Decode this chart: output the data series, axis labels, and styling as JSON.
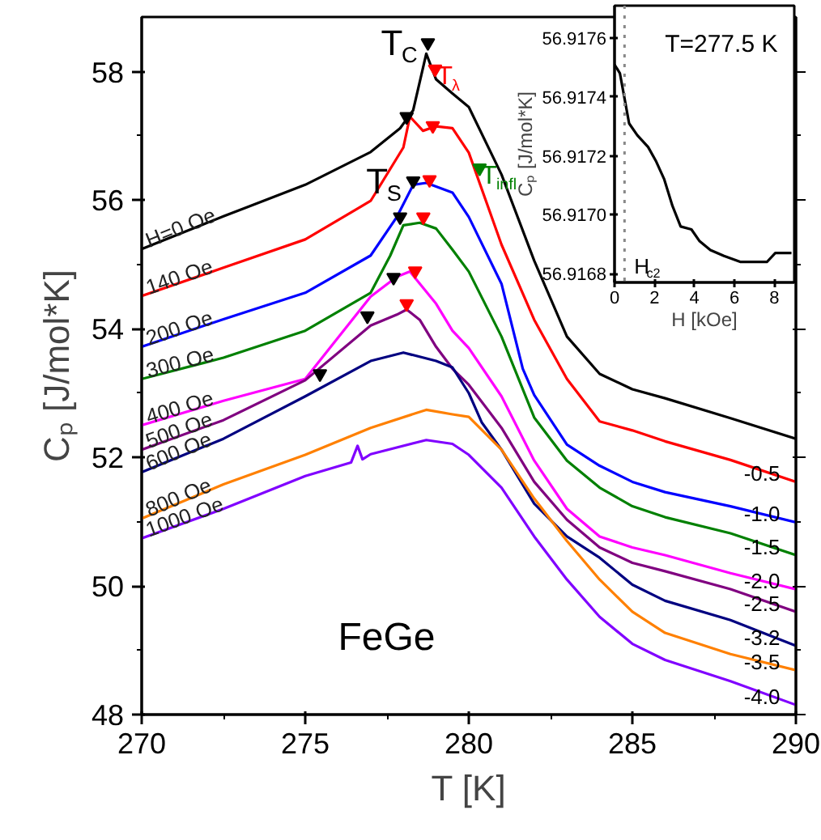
{
  "chart_data": [
    {
      "type": "line",
      "xlabel": "T [K]",
      "ylabel": "Cₚ [J/mol*K]",
      "xlim": [
        270,
        290
      ],
      "xticks": [
        270,
        {
          "value": 272.5,
          "label": null
        },
        275,
        {
          "value": 277.5,
          "label": null
        },
        280,
        {
          "value": 282.5,
          "label": null
        },
        285,
        {
          "value": 287.5,
          "label": null
        },
        290
      ],
      "ylim": [
        48,
        58.85
      ],
      "yticks": [
        48,
        {
          "value": 49,
          "label": null
        },
        50,
        {
          "value": 51,
          "label": null
        },
        52,
        {
          "value": 53,
          "label": null
        },
        54,
        {
          "value": 55,
          "label": null
        },
        56,
        {
          "value": 57,
          "label": null
        },
        58
      ],
      "grid": false,
      "annotations": [
        "FeGe",
        {
          "text": "T$_{C}$",
          "x": 278.75,
          "y": 58.45
        },
        {
          "text": "T$_{λ}$",
          "x": 278.97,
          "y": 58.04
        },
        {
          "text": "T$_{S}$",
          "x": 278.3,
          "y": 56.3
        },
        {
          "text": "T$_{infl}$",
          "x": 280.33,
          "y": 56.5
        },
        {
          "text": "-0.5",
          "x": 290,
          "y": 51.62
        },
        {
          "text": "-1.0",
          "x": 290,
          "y": 50.99
        },
        {
          "text": "-1.5",
          "x": 290,
          "y": 50.48
        },
        {
          "text": "-2.0",
          "x": 290,
          "y": 49.95
        },
        {
          "text": "-2.5",
          "x": 290,
          "y": 49.6
        },
        {
          "text": "-3.2",
          "x": 290,
          "y": 49.07
        },
        {
          "text": "-3.5",
          "x": 290,
          "y": 48.69
        },
        {
          "text": "-4.0",
          "x": 290,
          "y": 48.15
        }
      ],
      "series": [
        {
          "name": "H=0 Oe",
          "color": "#000000",
          "x": [
            270,
            272.5,
            275,
            277,
            277.9,
            278.3,
            278.7,
            279,
            279.5,
            280,
            281,
            282,
            283,
            284,
            285,
            286,
            288,
            290
          ],
          "values": [
            55.24,
            55.75,
            56.24,
            56.75,
            57.12,
            57.4,
            58.28,
            57.88,
            57.66,
            57.45,
            56.4,
            55.06,
            53.88,
            53.3,
            53.06,
            52.92,
            52.61,
            52.29
          ]
        },
        {
          "name": "140 Oe",
          "color": "#ff0000",
          "x": [
            270,
            272.5,
            275,
            277,
            278,
            278.2,
            278.6,
            279,
            279.5,
            280,
            281,
            282,
            283,
            284,
            285,
            286,
            288,
            290
          ],
          "values": [
            54.51,
            54.95,
            55.39,
            55.99,
            56.82,
            57.3,
            57.08,
            57.15,
            57.12,
            56.74,
            55.31,
            54.14,
            53.22,
            52.56,
            52.42,
            52.25,
            51.96,
            51.62
          ]
        },
        {
          "name": "200 Oe",
          "color": "#0000ff",
          "x": [
            270,
            272.5,
            275,
            277,
            277.8,
            278.3,
            278.7,
            279.5,
            280,
            281,
            281.65,
            282,
            283,
            284,
            285,
            286,
            288,
            290
          ],
          "values": [
            53.72,
            54.15,
            54.56,
            55.14,
            55.74,
            56.24,
            56.27,
            56.12,
            55.74,
            54.7,
            53.38,
            52.97,
            52.2,
            51.87,
            51.62,
            51.46,
            51.24,
            50.99
          ]
        },
        {
          "name": "300 Oe",
          "color": "#008000",
          "x": [
            270,
            272.5,
            275,
            277,
            277.6,
            278,
            278.5,
            279,
            279.5,
            280,
            281,
            282,
            283,
            284,
            285,
            286,
            288,
            290
          ],
          "values": [
            53.22,
            53.55,
            53.97,
            54.56,
            55.14,
            55.61,
            55.65,
            55.56,
            55.23,
            54.89,
            53.88,
            52.62,
            51.95,
            51.53,
            51.24,
            51.07,
            50.82,
            50.48
          ]
        },
        {
          "name": "400 Oe",
          "color": "#ff00ff",
          "x": [
            270,
            272.5,
            275,
            277,
            277.8,
            278.2,
            279,
            279.5,
            280,
            281,
            282,
            283,
            284,
            285,
            286,
            288,
            290
          ],
          "values": [
            52.5,
            52.88,
            53.22,
            54.5,
            54.81,
            54.89,
            54.39,
            53.97,
            53.7,
            52.95,
            51.95,
            51.2,
            50.77,
            50.6,
            50.48,
            50.2,
            49.95
          ]
        },
        {
          "name": "500 Oe",
          "color": "#800080",
          "x": [
            270,
            272.5,
            275,
            277,
            277.8,
            278.1,
            278.5,
            279,
            279.5,
            280,
            281,
            282,
            283,
            284,
            285,
            286,
            288,
            290
          ],
          "values": [
            52.12,
            52.58,
            53.2,
            54.05,
            54.22,
            54.3,
            54.14,
            53.72,
            53.38,
            53.13,
            52.46,
            51.62,
            51.03,
            50.6,
            50.36,
            50.23,
            49.95,
            49.6
          ]
        },
        {
          "name": "600 Oe",
          "color": "#000080",
          "x": [
            270,
            272.5,
            275,
            277,
            278,
            279,
            279.5,
            280,
            280.4,
            281,
            282,
            283,
            284,
            285,
            286,
            288,
            290
          ],
          "values": [
            51.77,
            52.29,
            52.95,
            53.5,
            53.63,
            53.5,
            53.4,
            53.0,
            52.54,
            52.12,
            51.28,
            50.77,
            50.44,
            50.02,
            49.77,
            49.47,
            49.07
          ]
        },
        {
          "name": "800 Oe",
          "color": "#ff8000",
          "x": [
            270,
            272.5,
            275,
            277,
            278.7,
            279.5,
            280,
            281,
            282,
            283,
            284,
            285,
            286,
            288,
            290
          ],
          "values": [
            51.05,
            51.58,
            52.04,
            52.46,
            52.74,
            52.67,
            52.63,
            52.12,
            51.36,
            50.7,
            50.1,
            49.6,
            49.27,
            48.94,
            48.69
          ]
        },
        {
          "name": "1000 Oe",
          "color": "#8000ff",
          "x": [
            270,
            272.5,
            275,
            276.4,
            276.6,
            276.75,
            277,
            278.7,
            279.5,
            280,
            281,
            282,
            283,
            284,
            285,
            286,
            288,
            290
          ],
          "values": [
            50.74,
            51.2,
            51.71,
            51.92,
            52.18,
            51.97,
            52.05,
            52.27,
            52.21,
            52.04,
            51.53,
            50.77,
            50.1,
            49.52,
            49.1,
            48.85,
            48.52,
            48.15
          ]
        },
        {
          "type": "scatter",
          "marker": "triangle",
          "color": "#000000",
          "x": [
            278.75,
            278.1,
            278.3,
            277.9,
            277.7,
            276.9,
            275.45
          ],
          "values": [
            58.45,
            57.3,
            56.3,
            55.74,
            54.8,
            54.2,
            53.3
          ]
        },
        {
          "type": "scatter",
          "marker": "triangle",
          "color": "#ff0000",
          "x": [
            278.97,
            278.9,
            278.8,
            278.61,
            278.36,
            278.1
          ],
          "values": [
            58.04,
            57.16,
            56.32,
            55.74,
            54.9,
            54.39
          ]
        },
        {
          "type": "scatter",
          "marker": "triangle",
          "color": "#008000",
          "x": [
            280.33
          ],
          "values": [
            56.5
          ]
        }
      ]
    },
    {
      "type": "line",
      "xlabel": "H [kOe]",
      "ylabel": "Cₚ [J/mol*K]",
      "xlim": [
        0,
        9
      ],
      "xticks": [
        0,
        2,
        4,
        6,
        8
      ],
      "ylim": [
        56.91677,
        56.91771
      ],
      "yticks": [
        {
          "value": 56.9168,
          "label": "56.9168"
        },
        {
          "value": 56.917,
          "label": "56.9170"
        },
        {
          "value": 56.9172,
          "label": "56.9172"
        },
        {
          "value": 56.9174,
          "label": "56.9174"
        },
        {
          "value": 56.9176,
          "label": "56.9176"
        }
      ],
      "grid": false,
      "annotations": [
        "T=277.5 K"
      ],
      "ref_lines": [
        {
          "axis": "x",
          "value": 0.5,
          "label": "H$_{c2}$",
          "color": "#888888",
          "line_style": "dotted"
        }
      ],
      "series": [
        {
          "color": "#000000",
          "x": [
            0,
            0.27,
            0.46,
            0.73,
            1.14,
            1.68,
            2.09,
            2.49,
            2.9,
            3.31,
            3.85,
            4.26,
            4.8,
            5.48,
            6.29,
            6.83,
            7.64,
            8.05,
            8.86
          ],
          "values": [
            56.91751,
            56.91748,
            56.91741,
            56.91731,
            56.91727,
            56.91723,
            56.91718,
            56.91712,
            56.91703,
            56.91696,
            56.91695,
            56.91691,
            56.91688,
            56.91686,
            56.91684,
            56.91684,
            56.91684,
            56.91687,
            56.91687
          ]
        }
      ]
    }
  ]
}
